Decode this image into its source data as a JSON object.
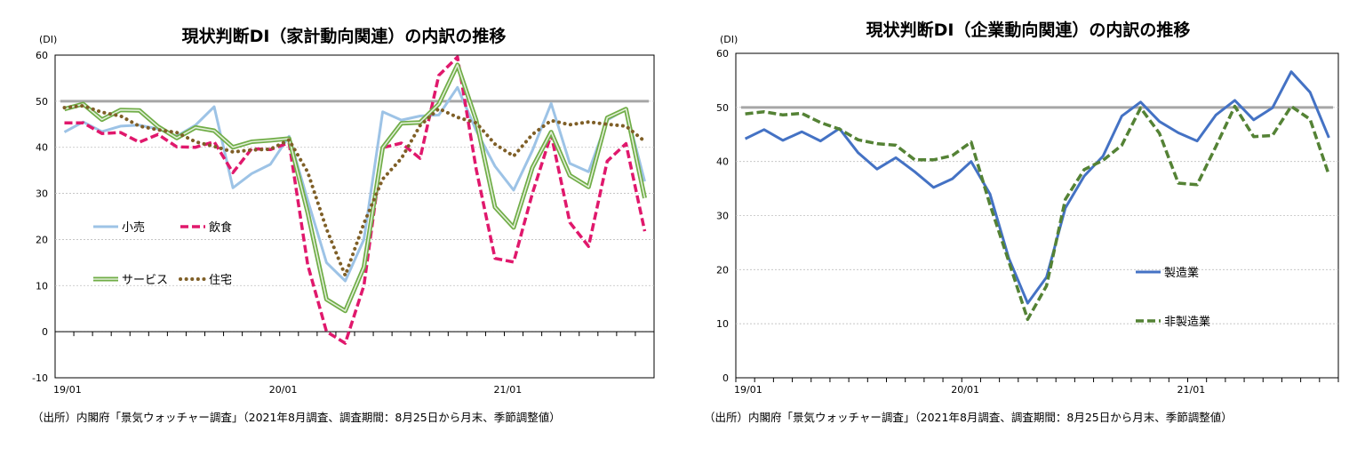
{
  "charts": [
    {
      "type": "line",
      "title": "現状判断DI（家計動向関連）の内訳の推移",
      "unit": "(DI)",
      "source": "（出所）内閣府「景気ウォッチャー調査」（2021年8月調査、調査期間：8月25日から月末、季節調整値）",
      "ylim": [
        -10,
        60
      ],
      "yticks": [
        "60",
        "50",
        "40",
        "30",
        "20",
        "10",
        "0",
        "-10"
      ],
      "xticks": [
        "19/01",
        "20/01",
        "21/01"
      ],
      "reference_line": 50,
      "grid": true,
      "series": [
        {
          "name": "小売",
          "color": "#9dc3e6",
          "style": "solid",
          "values": [
            43.3,
            45.5,
            43.4,
            44.6,
            44.8,
            44.0,
            42.4,
            44.8,
            48.8,
            31.2,
            34.3,
            36.3,
            42.4,
            28.5,
            15.0,
            11.0,
            20.0,
            47.7,
            45.9,
            46.8,
            47.0,
            53.0,
            43.6,
            35.9,
            30.7,
            39.3,
            49.5,
            36.5,
            34.7,
            45.9,
            48.3,
            32.6
          ]
        },
        {
          "name": "飲食",
          "color": "#e0186c",
          "style": "dash",
          "values": [
            45.3,
            45.3,
            43.0,
            43.2,
            41.1,
            42.8,
            40.1,
            40.0,
            41.2,
            34.5,
            39.7,
            39.5,
            41.0,
            14.5,
            0.0,
            -2.5,
            10.0,
            39.9,
            40.9,
            37.6,
            55.6,
            59.6,
            35.2,
            15.9,
            15.1,
            30.0,
            42.8,
            23.7,
            18.5,
            37.0,
            40.8,
            21.8
          ]
        },
        {
          "name": "サービス",
          "color": "#70ad47",
          "style": "double",
          "values": [
            48.3,
            49.4,
            46.0,
            48.1,
            48.0,
            44.5,
            42.0,
            44.3,
            43.6,
            40.0,
            41.2,
            41.5,
            41.9,
            25.8,
            7.0,
            4.5,
            14.0,
            39.9,
            45.2,
            45.4,
            49.4,
            57.9,
            45.8,
            27.0,
            22.6,
            35.6,
            43.3,
            33.9,
            31.4,
            46.4,
            48.3,
            29.0
          ]
        },
        {
          "name": "住宅",
          "color": "#7f5f27",
          "style": "dot",
          "values": [
            48.6,
            49.0,
            47.6,
            46.8,
            44.6,
            43.8,
            43.2,
            41.2,
            40.2,
            39.0,
            39.4,
            39.6,
            41.6,
            34.6,
            22.3,
            12.2,
            23.5,
            33.1,
            37.6,
            44.7,
            48.4,
            46.5,
            45.3,
            40.7,
            38.1,
            42.8,
            45.8,
            44.9,
            45.5,
            45.0,
            44.6,
            41.3
          ]
        }
      ]
    },
    {
      "type": "line",
      "title": "現状判断DI（企業動向関連）の内訳の推移",
      "unit": "(DI)",
      "source": "（出所）内閣府「景気ウォッチャー調査」（2021年8月調査、調査期間：8月25日から月末、季節調整値）",
      "ylim": [
        0,
        60
      ],
      "yticks": [
        "60",
        "50",
        "40",
        "30",
        "20",
        "10",
        "0"
      ],
      "xticks": [
        "19/01",
        "20/01",
        "21/01"
      ],
      "reference_line": 50,
      "grid": true,
      "series": [
        {
          "name": "製造業",
          "color": "#4472c4",
          "style": "solid",
          "values": [
            44.2,
            45.9,
            43.9,
            45.5,
            43.8,
            46.1,
            41.6,
            38.6,
            40.7,
            38.1,
            35.2,
            36.8,
            40.0,
            34.0,
            22.1,
            13.8,
            18.6,
            31.4,
            37.3,
            41.0,
            48.4,
            51.0,
            47.4,
            45.3,
            43.8,
            48.6,
            51.3,
            47.7,
            49.9,
            56.6,
            52.8,
            44.4
          ]
        },
        {
          "name": "非製造業",
          "color": "#548235",
          "style": "dash",
          "values": [
            48.8,
            49.2,
            48.6,
            48.9,
            47.2,
            46.0,
            44.0,
            43.3,
            43.0,
            40.3,
            40.3,
            41.1,
            43.6,
            32.0,
            21.5,
            10.8,
            17.0,
            33.0,
            38.5,
            40.2,
            43.0,
            49.9,
            45.2,
            36.0,
            35.7,
            42.8,
            50.2,
            44.6,
            44.8,
            50.2,
            47.8,
            37.5
          ]
        }
      ]
    }
  ]
}
